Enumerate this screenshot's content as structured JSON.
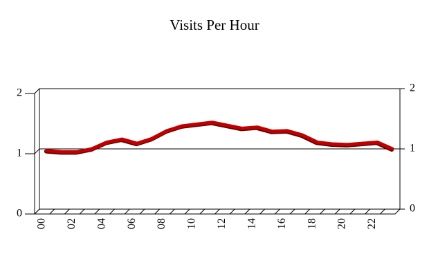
{
  "chart_data": {
    "type": "line",
    "title": "Visits Per Hour",
    "categories": [
      "00",
      null,
      "02",
      null,
      "04",
      null,
      "06",
      null,
      "08",
      null,
      "10",
      null,
      "12",
      null,
      "14",
      null,
      "16",
      null,
      "18",
      null,
      "20",
      null,
      "22",
      null
    ],
    "series": [
      {
        "color": "#c00000",
        "values": [
          0.97,
          0.95,
          0.95,
          1.0,
          1.11,
          1.16,
          1.09,
          1.17,
          1.3,
          1.38,
          1.41,
          1.44,
          1.39,
          1.34,
          1.36,
          1.29,
          1.3,
          1.23,
          1.11,
          1.08,
          1.07,
          1.09,
          1.11,
          1.0
        ]
      }
    ],
    "ylim": [
      0,
      2
    ],
    "yticks": [
      0,
      1,
      2
    ],
    "y2lim": [
      0,
      2
    ],
    "y2ticks": [
      0,
      1,
      2
    ],
    "grid": true
  }
}
